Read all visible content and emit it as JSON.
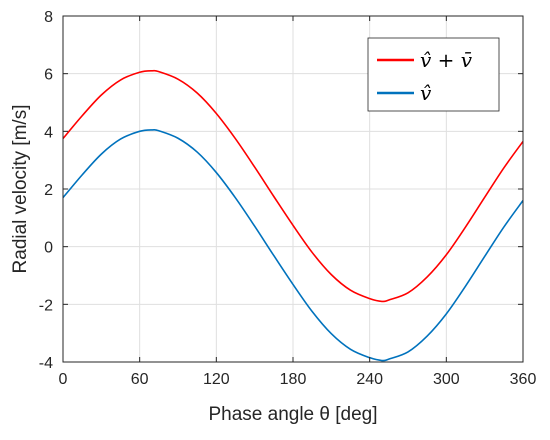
{
  "chart_data": {
    "type": "line",
    "xlabel": "Phase angle θ [deg]",
    "ylabel": "Radial velocity [m/s]",
    "xlim": [
      0,
      360
    ],
    "ylim": [
      -4,
      8
    ],
    "xticks": [
      0,
      60,
      120,
      180,
      240,
      300,
      360
    ],
    "yticks": [
      -4,
      -2,
      0,
      2,
      4,
      6,
      8
    ],
    "grid": true,
    "legend_position": "top-right",
    "series": [
      {
        "name": "v̂ + v̄",
        "color": "#ff0000",
        "x": [
          0,
          15,
          30,
          45,
          60,
          70,
          75,
          90,
          105,
          120,
          135,
          150,
          165,
          180,
          195,
          210,
          225,
          240,
          250,
          255,
          270,
          285,
          300,
          315,
          330,
          345,
          360
        ],
        "y": [
          3.75,
          4.54,
          5.26,
          5.78,
          6.05,
          6.1,
          6.07,
          5.81,
          5.33,
          4.62,
          3.74,
          2.76,
          1.74,
          0.74,
          -0.2,
          -0.97,
          -1.51,
          -1.8,
          -1.9,
          -1.85,
          -1.6,
          -1.05,
          -0.28,
          0.68,
          1.71,
          2.73,
          3.65
        ]
      },
      {
        "name": "v̂",
        "color": "#0072bd",
        "x": [
          0,
          15,
          30,
          45,
          60,
          70,
          75,
          90,
          105,
          120,
          135,
          150,
          165,
          180,
          195,
          210,
          225,
          240,
          250,
          255,
          270,
          285,
          300,
          315,
          330,
          345,
          360
        ],
        "y": [
          1.7,
          2.49,
          3.21,
          3.73,
          4.0,
          4.05,
          4.02,
          3.76,
          3.28,
          2.57,
          1.69,
          0.71,
          -0.31,
          -1.31,
          -2.25,
          -3.02,
          -3.56,
          -3.85,
          -3.95,
          -3.9,
          -3.65,
          -3.1,
          -2.33,
          -1.37,
          -0.34,
          0.68,
          1.6
        ]
      }
    ]
  }
}
